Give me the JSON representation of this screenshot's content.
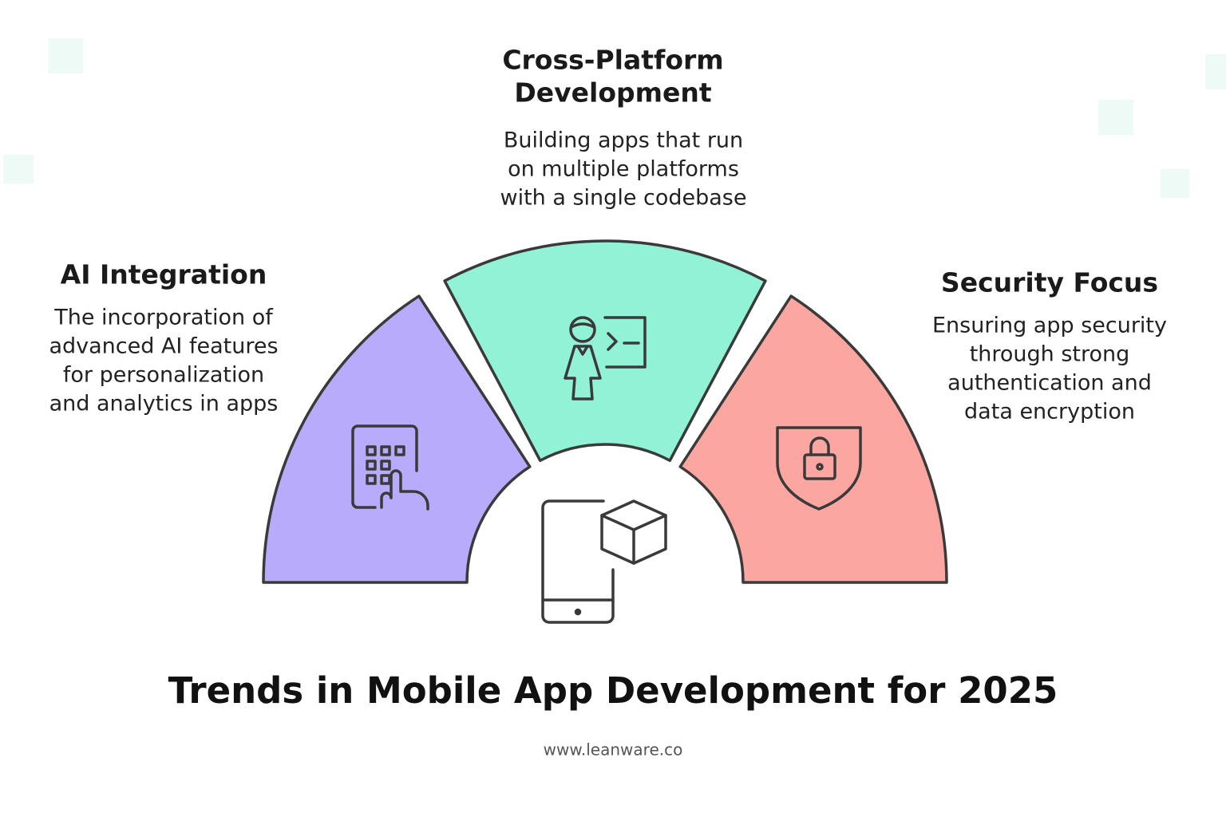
{
  "title": "Trends in Mobile App Development for 2025",
  "footer": "www.leanware.co",
  "items": [
    {
      "title": [
        "AI Integration"
      ],
      "description": [
        "The incorporation of",
        "advanced AI features",
        "for personalization",
        "and analytics in apps"
      ]
    },
    {
      "title": [
        "Cross-Platform",
        "Development"
      ],
      "description": [
        "Building apps that run",
        "on multiple platforms",
        "with a single codebase"
      ]
    },
    {
      "title": [
        "Security Focus"
      ],
      "description": [
        "Ensuring app security",
        "through strong",
        "authentication and",
        "data encryption"
      ]
    }
  ]
}
